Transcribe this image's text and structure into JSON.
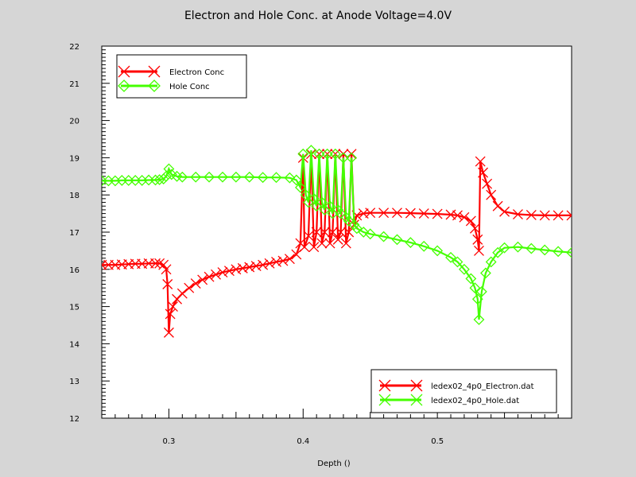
{
  "title": "Electron and Hole Conc. at Anode Voltage=4.0V",
  "chart_data": {
    "type": "line",
    "title": "Electron and Hole Conc. at Anode Voltage=4.0V",
    "xlabel": "Depth ()",
    "ylabel": "",
    "xlim": [
      0.25,
      0.6
    ],
    "ylim": [
      12,
      22
    ],
    "xticks": [
      "0.3",
      "0.4",
      "0.5"
    ],
    "yticks": [
      "12",
      "13",
      "14",
      "15",
      "16",
      "17",
      "18",
      "19",
      "20",
      "21",
      "22"
    ],
    "grid": false,
    "legend_top_left": [
      "Electron Conc",
      "Hole Conc"
    ],
    "legend_bottom_right": [
      "ledex02_4p0_Electron.dat",
      "ledex02_4p0_Hole.dat"
    ],
    "series": [
      {
        "name": "Electron Conc",
        "file": "ledex02_4p0_Electron.dat",
        "color": "#ff0000",
        "marker": "x",
        "points": [
          [
            0.25,
            16.12
          ],
          [
            0.255,
            16.12
          ],
          [
            0.26,
            16.12
          ],
          [
            0.265,
            16.13
          ],
          [
            0.27,
            16.14
          ],
          [
            0.275,
            16.15
          ],
          [
            0.28,
            16.15
          ],
          [
            0.285,
            16.16
          ],
          [
            0.29,
            16.16
          ],
          [
            0.293,
            16.16
          ],
          [
            0.296,
            16.12
          ],
          [
            0.298,
            16.0
          ],
          [
            0.299,
            15.6
          ],
          [
            0.3,
            14.3
          ],
          [
            0.301,
            14.8
          ],
          [
            0.303,
            15.0
          ],
          [
            0.306,
            15.2
          ],
          [
            0.31,
            15.35
          ],
          [
            0.315,
            15.5
          ],
          [
            0.32,
            15.62
          ],
          [
            0.325,
            15.72
          ],
          [
            0.33,
            15.8
          ],
          [
            0.335,
            15.86
          ],
          [
            0.34,
            15.92
          ],
          [
            0.345,
            15.96
          ],
          [
            0.35,
            16.0
          ],
          [
            0.355,
            16.03
          ],
          [
            0.36,
            16.06
          ],
          [
            0.365,
            16.09
          ],
          [
            0.37,
            16.12
          ],
          [
            0.375,
            16.16
          ],
          [
            0.38,
            16.2
          ],
          [
            0.385,
            16.23
          ],
          [
            0.39,
            16.28
          ],
          [
            0.395,
            16.4
          ],
          [
            0.398,
            16.7
          ],
          [
            0.4,
            19.0
          ],
          [
            0.401,
            16.6
          ],
          [
            0.404,
            16.9
          ],
          [
            0.406,
            19.1
          ],
          [
            0.408,
            16.6
          ],
          [
            0.41,
            17.0
          ],
          [
            0.412,
            19.1
          ],
          [
            0.414,
            16.7
          ],
          [
            0.416,
            17.0
          ],
          [
            0.418,
            19.1
          ],
          [
            0.42,
            16.7
          ],
          [
            0.422,
            17.0
          ],
          [
            0.424,
            19.1
          ],
          [
            0.426,
            16.8
          ],
          [
            0.428,
            17.0
          ],
          [
            0.43,
            19.1
          ],
          [
            0.432,
            16.7
          ],
          [
            0.434,
            17.0
          ],
          [
            0.436,
            19.1
          ],
          [
            0.438,
            17.2
          ],
          [
            0.44,
            17.45
          ],
          [
            0.445,
            17.5
          ],
          [
            0.45,
            17.52
          ],
          [
            0.46,
            17.52
          ],
          [
            0.47,
            17.52
          ],
          [
            0.48,
            17.51
          ],
          [
            0.49,
            17.5
          ],
          [
            0.5,
            17.49
          ],
          [
            0.51,
            17.47
          ],
          [
            0.515,
            17.45
          ],
          [
            0.52,
            17.4
          ],
          [
            0.525,
            17.3
          ],
          [
            0.528,
            17.1
          ],
          [
            0.53,
            16.8
          ],
          [
            0.531,
            16.5
          ],
          [
            0.532,
            18.9
          ],
          [
            0.534,
            18.6
          ],
          [
            0.537,
            18.3
          ],
          [
            0.54,
            18.0
          ],
          [
            0.545,
            17.7
          ],
          [
            0.55,
            17.55
          ],
          [
            0.56,
            17.48
          ],
          [
            0.57,
            17.46
          ],
          [
            0.58,
            17.45
          ],
          [
            0.59,
            17.45
          ],
          [
            0.6,
            17.45
          ]
        ]
      },
      {
        "name": "Hole Conc",
        "file": "ledex02_4p0_Hole.dat",
        "color": "#44ff00",
        "marker": "diamond",
        "points": [
          [
            0.25,
            18.38
          ],
          [
            0.255,
            18.38
          ],
          [
            0.26,
            18.38
          ],
          [
            0.265,
            18.39
          ],
          [
            0.27,
            18.39
          ],
          [
            0.275,
            18.39
          ],
          [
            0.28,
            18.39
          ],
          [
            0.285,
            18.4
          ],
          [
            0.29,
            18.4
          ],
          [
            0.293,
            18.41
          ],
          [
            0.296,
            18.43
          ],
          [
            0.298,
            18.5
          ],
          [
            0.3,
            18.7
          ],
          [
            0.302,
            18.55
          ],
          [
            0.306,
            18.5
          ],
          [
            0.31,
            18.48
          ],
          [
            0.32,
            18.48
          ],
          [
            0.33,
            18.48
          ],
          [
            0.34,
            18.48
          ],
          [
            0.35,
            18.48
          ],
          [
            0.36,
            18.48
          ],
          [
            0.37,
            18.47
          ],
          [
            0.38,
            18.47
          ],
          [
            0.39,
            18.46
          ],
          [
            0.395,
            18.4
          ],
          [
            0.398,
            18.2
          ],
          [
            0.4,
            19.1
          ],
          [
            0.402,
            18.0
          ],
          [
            0.404,
            17.8
          ],
          [
            0.406,
            19.2
          ],
          [
            0.408,
            17.9
          ],
          [
            0.41,
            17.7
          ],
          [
            0.412,
            19.1
          ],
          [
            0.414,
            17.8
          ],
          [
            0.416,
            17.6
          ],
          [
            0.418,
            19.1
          ],
          [
            0.42,
            17.7
          ],
          [
            0.422,
            17.5
          ],
          [
            0.424,
            19.1
          ],
          [
            0.426,
            17.6
          ],
          [
            0.428,
            17.5
          ],
          [
            0.43,
            19.0
          ],
          [
            0.432,
            17.4
          ],
          [
            0.434,
            17.3
          ],
          [
            0.436,
            19.0
          ],
          [
            0.438,
            17.2
          ],
          [
            0.44,
            17.1
          ],
          [
            0.445,
            17.0
          ],
          [
            0.45,
            16.95
          ],
          [
            0.46,
            16.88
          ],
          [
            0.47,
            16.8
          ],
          [
            0.48,
            16.72
          ],
          [
            0.49,
            16.62
          ],
          [
            0.5,
            16.5
          ],
          [
            0.51,
            16.32
          ],
          [
            0.515,
            16.2
          ],
          [
            0.52,
            16.0
          ],
          [
            0.525,
            15.75
          ],
          [
            0.528,
            15.5
          ],
          [
            0.53,
            15.2
          ],
          [
            0.531,
            14.65
          ],
          [
            0.533,
            15.4
          ],
          [
            0.536,
            15.9
          ],
          [
            0.54,
            16.2
          ],
          [
            0.545,
            16.45
          ],
          [
            0.55,
            16.58
          ],
          [
            0.56,
            16.6
          ],
          [
            0.57,
            16.56
          ],
          [
            0.58,
            16.52
          ],
          [
            0.59,
            16.48
          ],
          [
            0.6,
            16.45
          ]
        ]
      }
    ]
  }
}
